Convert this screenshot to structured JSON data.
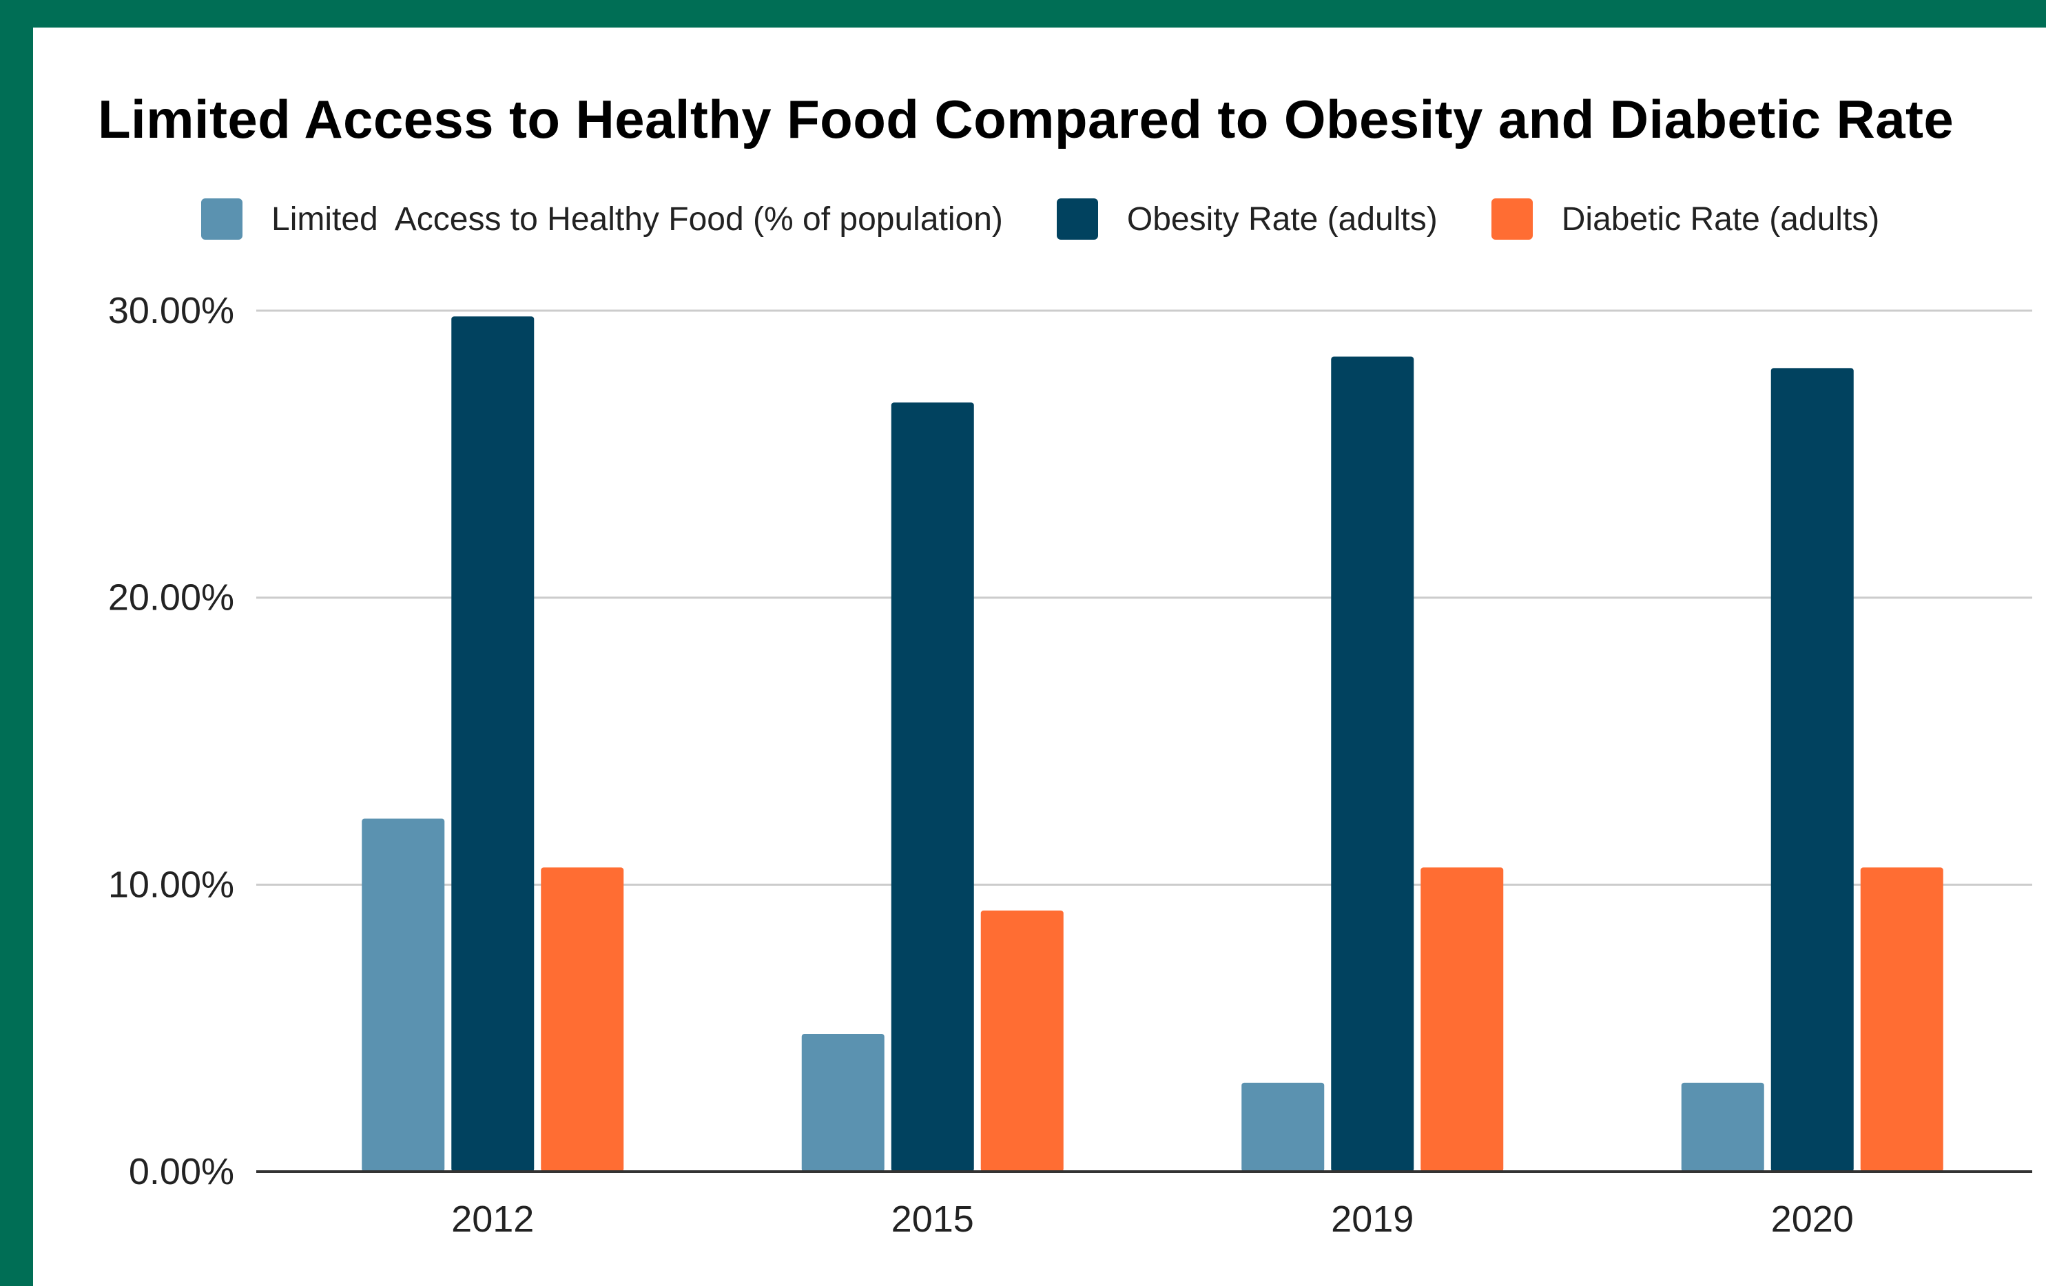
{
  "colors": {
    "frame": "#006e55",
    "background": "#ffffff",
    "grid": "#cccccc",
    "axis": "#333333"
  },
  "chart_data": {
    "type": "bar",
    "title": "Limited Access to Healthy Food Compared to Obesity and Diabetic Rate",
    "categories": [
      "2012",
      "2015",
      "2019",
      "2020"
    ],
    "series": [
      {
        "name": "Limited  Access to Healthy Food (% of population)",
        "color": "#5b92b0",
        "values": [
          12.3,
          4.8,
          3.1,
          3.1
        ]
      },
      {
        "name": "Obesity Rate (adults)",
        "color": "#01425f",
        "values": [
          29.8,
          26.8,
          28.4,
          28.0
        ]
      },
      {
        "name": "Diabetic Rate (adults)",
        "color": "#ff6d33",
        "values": [
          10.6,
          9.1,
          10.6,
          10.6
        ]
      }
    ],
    "yticks": [
      "0.00%",
      "10.00%",
      "20.00%",
      "30.00%"
    ],
    "ytick_values": [
      0,
      10,
      20,
      30
    ],
    "ylim": [
      0,
      30
    ],
    "grid": true,
    "legend_position": "top",
    "xlabel": "",
    "ylabel": ""
  }
}
